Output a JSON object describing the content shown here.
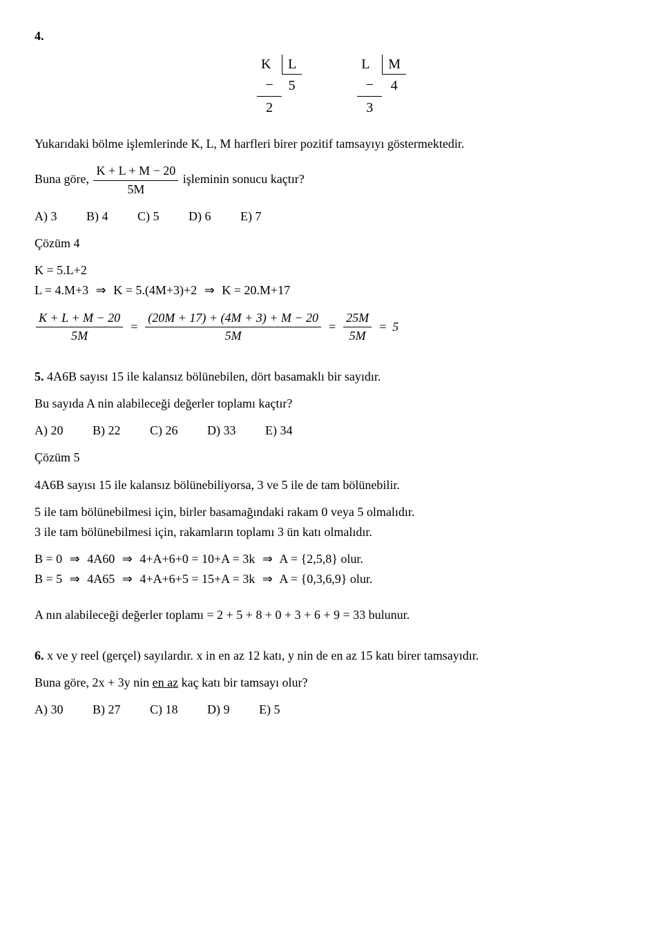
{
  "q4": {
    "number": "4.",
    "div1": {
      "dividend": "K",
      "divisor": "L",
      "subtract": "−",
      "quotient": "5",
      "remainder": "2"
    },
    "div2": {
      "dividend": "L",
      "divisor": "M",
      "subtract": "−",
      "quotient": "4",
      "remainder": "3"
    },
    "intro": "Yukarıdaki bölme işlemlerinde K, L, M harfleri birer pozitif tamsayıyı göstermektedir.",
    "buna_gore": "Buna göre,",
    "frac_num": "K + L + M − 20",
    "frac_den": "5M",
    "isleminin": " işleminin sonucu kaçtır?",
    "choices": {
      "a": "A) 3",
      "b": "B) 4",
      "c": "C) 5",
      "d": "D) 6",
      "e": "E) 7"
    },
    "cozum": "Çözüm 4",
    "line1": "K = 5.L+2",
    "line2_a": "L = 4.M+3",
    "line2_b": "K = 5.(4M+3)+2",
    "line2_c": "K = 20.M+17",
    "arrow": "⇒",
    "eq_frac1_num": "K + L + M − 20",
    "eq_frac1_den": "5M",
    "eq_frac2_num": "(20M + 17) + (4M + 3) + M − 20",
    "eq_frac2_den": "5M",
    "eq_frac3_num": "25M",
    "eq_frac3_den": "5M",
    "eq_eq": "=",
    "eq_result": "5"
  },
  "q5": {
    "number": "5.",
    "stem": " 4A6B sayısı 15 ile kalansız bölünebilen, dört basamaklı bir sayıdır.",
    "q": "Bu sayıda A nin alabileceği değerler toplamı kaçtır?",
    "choices": {
      "a": "A) 20",
      "b": "B) 22",
      "c": "C) 26",
      "d": "D) 33",
      "e": "E) 34"
    },
    "cozum": "Çözüm 5",
    "s1": "4A6B sayısı 15 ile kalansız bölünebiliyorsa, 3 ve 5 ile de tam bölünebilir.",
    "s2": "5 ile tam bölünebilmesi için, birler basamağındaki rakam 0 veya 5 olmalıdır.",
    "s3": "3 ile tam bölünebilmesi için, rakamların toplamı 3 ün katı olmalıdır.",
    "l1_a": "B = 0",
    "l1_b": "4A60",
    "l1_c": "4+A+6+0 = 10+A = 3k",
    "l1_d": "A = {2,5,8} olur.",
    "l2_a": "B = 5",
    "l2_b": "4A65",
    "l2_c": "4+A+6+5 = 15+A = 3k",
    "l2_d": "A = {0,3,6,9} olur.",
    "sonuc": "A nın alabileceği değerler toplamı = 2 + 5 + 8 + 0 + 3 + 6 + 9 = 33 bulunur."
  },
  "q6": {
    "number": "6.",
    "stem": " x ve y reel (gerçel) sayılardır. x in en az 12 katı, y nin de en az 15 katı birer tamsayıdır.",
    "q_pre": "Buna göre, 2x + 3y nin ",
    "q_ul": "en az",
    "q_post": " kaç katı bir tamsayı olur?",
    "choices": {
      "a": "A) 30",
      "b": "B) 27",
      "c": "C) 18",
      "d": "D) 9",
      "e": "E) 5"
    }
  }
}
